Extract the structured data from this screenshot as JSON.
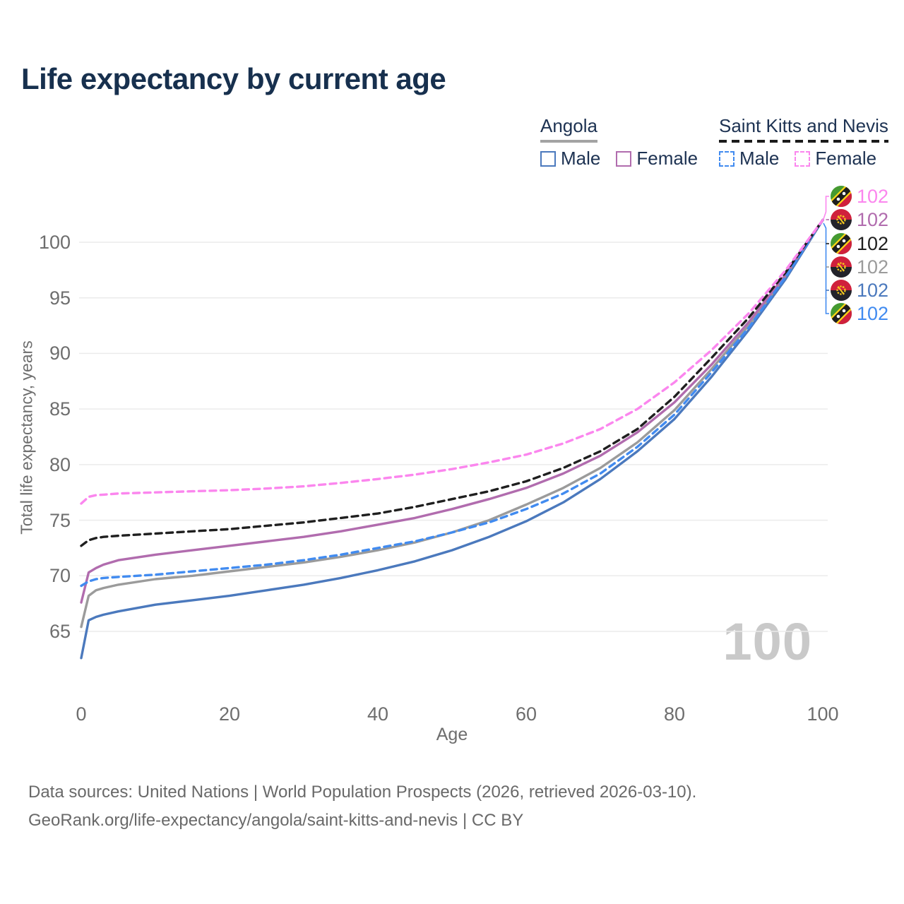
{
  "header": {
    "title": "Life expectancy by current age"
  },
  "legend": {
    "groups": [
      {
        "label": "Angola",
        "underline": "solid",
        "underline_color": "#a3a3a3",
        "items": [
          {
            "label": "Male",
            "color": "#4b79bd",
            "dashed": false
          },
          {
            "label": "Female",
            "color": "#b16cae",
            "dashed": false
          }
        ]
      },
      {
        "label": "Saint Kitts and Nevis",
        "underline": "dashed",
        "underline_color": "#1b1b1b",
        "items": [
          {
            "label": "Male",
            "color": "#418bf0",
            "dashed": true
          },
          {
            "label": "Female",
            "color": "#fb86ee",
            "dashed": true
          }
        ]
      }
    ]
  },
  "chart_data": {
    "type": "line",
    "title": "Life expectancy by current age",
    "xlabel": "Age",
    "ylabel": "Total life expectancy, years",
    "x_ticks": [
      0,
      20,
      40,
      60,
      80,
      100
    ],
    "y_ticks": [
      65,
      70,
      75,
      80,
      85,
      90,
      95,
      100
    ],
    "xlim": [
      0,
      100
    ],
    "ylim": [
      62,
      103.5
    ],
    "grid": "horizontal-only",
    "legend_position": "top-right",
    "x": [
      0,
      1,
      2,
      3,
      5,
      10,
      15,
      20,
      25,
      30,
      35,
      40,
      45,
      50,
      55,
      60,
      65,
      70,
      75,
      80,
      85,
      90,
      95,
      100
    ],
    "series": [
      {
        "id": "angola_male",
        "name": "Angola Male",
        "country": "Angola",
        "flag": "ao",
        "sex": "male",
        "color": "#4b79bd",
        "dashed": false,
        "end_value": "102",
        "values": [
          62.6,
          66.0,
          66.3,
          66.5,
          66.8,
          67.4,
          67.8,
          68.2,
          68.7,
          69.2,
          69.8,
          70.5,
          71.3,
          72.3,
          73.5,
          74.9,
          76.6,
          78.7,
          81.2,
          84.1,
          87.9,
          92.1,
          96.7,
          102
        ]
      },
      {
        "id": "angola_total",
        "name": "Angola Both sexes",
        "country": "Angola",
        "flag": "ao",
        "sex": "total",
        "color": "#9b9b9b",
        "dashed": false,
        "end_value": "102",
        "values": [
          65.4,
          68.2,
          68.7,
          68.9,
          69.2,
          69.7,
          70.0,
          70.4,
          70.8,
          71.2,
          71.7,
          72.3,
          73.0,
          73.9,
          75.0,
          76.4,
          77.9,
          79.7,
          82.0,
          84.9,
          88.6,
          92.5,
          97.0,
          102
        ]
      },
      {
        "id": "angola_female",
        "name": "Angola Female",
        "country": "Angola",
        "flag": "ao",
        "sex": "female",
        "color": "#b16cae",
        "dashed": false,
        "end_value": "102",
        "values": [
          67.6,
          70.3,
          70.7,
          71.0,
          71.4,
          71.9,
          72.3,
          72.7,
          73.1,
          73.5,
          74.0,
          74.6,
          75.2,
          76.0,
          76.9,
          77.9,
          79.2,
          80.8,
          82.9,
          85.6,
          89.0,
          92.8,
          97.1,
          102
        ]
      },
      {
        "id": "skn_male",
        "name": "Saint Kitts and Nevis Male",
        "country": "Saint Kitts and Nevis",
        "flag": "kn",
        "sex": "male",
        "color": "#418bf0",
        "dashed": true,
        "end_value": "102",
        "values": [
          69.1,
          69.5,
          69.7,
          69.8,
          69.9,
          70.1,
          70.4,
          70.7,
          71.0,
          71.4,
          71.9,
          72.5,
          73.1,
          73.9,
          74.8,
          76.0,
          77.4,
          79.2,
          81.6,
          84.5,
          88.3,
          92.3,
          96.9,
          102
        ]
      },
      {
        "id": "skn_total",
        "name": "Saint Kitts and Nevis Both sexes",
        "country": "Saint Kitts and Nevis",
        "flag": "kn",
        "sex": "total",
        "color": "#1f1f1f",
        "dashed": true,
        "end_value": "102",
        "values": [
          72.7,
          73.2,
          73.4,
          73.5,
          73.6,
          73.8,
          74.0,
          74.2,
          74.5,
          74.8,
          75.2,
          75.6,
          76.2,
          76.9,
          77.6,
          78.5,
          79.7,
          81.2,
          83.2,
          86.1,
          89.6,
          93.2,
          97.3,
          102
        ]
      },
      {
        "id": "skn_female",
        "name": "Saint Kitts and Nevis Female",
        "country": "Saint Kitts and Nevis",
        "flag": "kn",
        "sex": "female",
        "color": "#fb86ee",
        "dashed": true,
        "end_value": "102",
        "values": [
          76.5,
          77.1,
          77.25,
          77.3,
          77.4,
          77.5,
          77.6,
          77.7,
          77.85,
          78.05,
          78.35,
          78.7,
          79.1,
          79.6,
          80.2,
          80.9,
          81.9,
          83.2,
          85.0,
          87.4,
          90.3,
          93.6,
          97.5,
          102
        ]
      }
    ],
    "end_labels_order": [
      "skn_female",
      "angola_female",
      "skn_total",
      "angola_total",
      "angola_male",
      "skn_male"
    ]
  },
  "watermark": {
    "text": "100"
  },
  "footer": {
    "line1": "Data sources: United Nations | World Population Prospects (2026, retrieved 2026-03-10).",
    "line2": "GeoRank.org/life-expectancy/angola/saint-kitts-and-nevis | CC BY"
  }
}
